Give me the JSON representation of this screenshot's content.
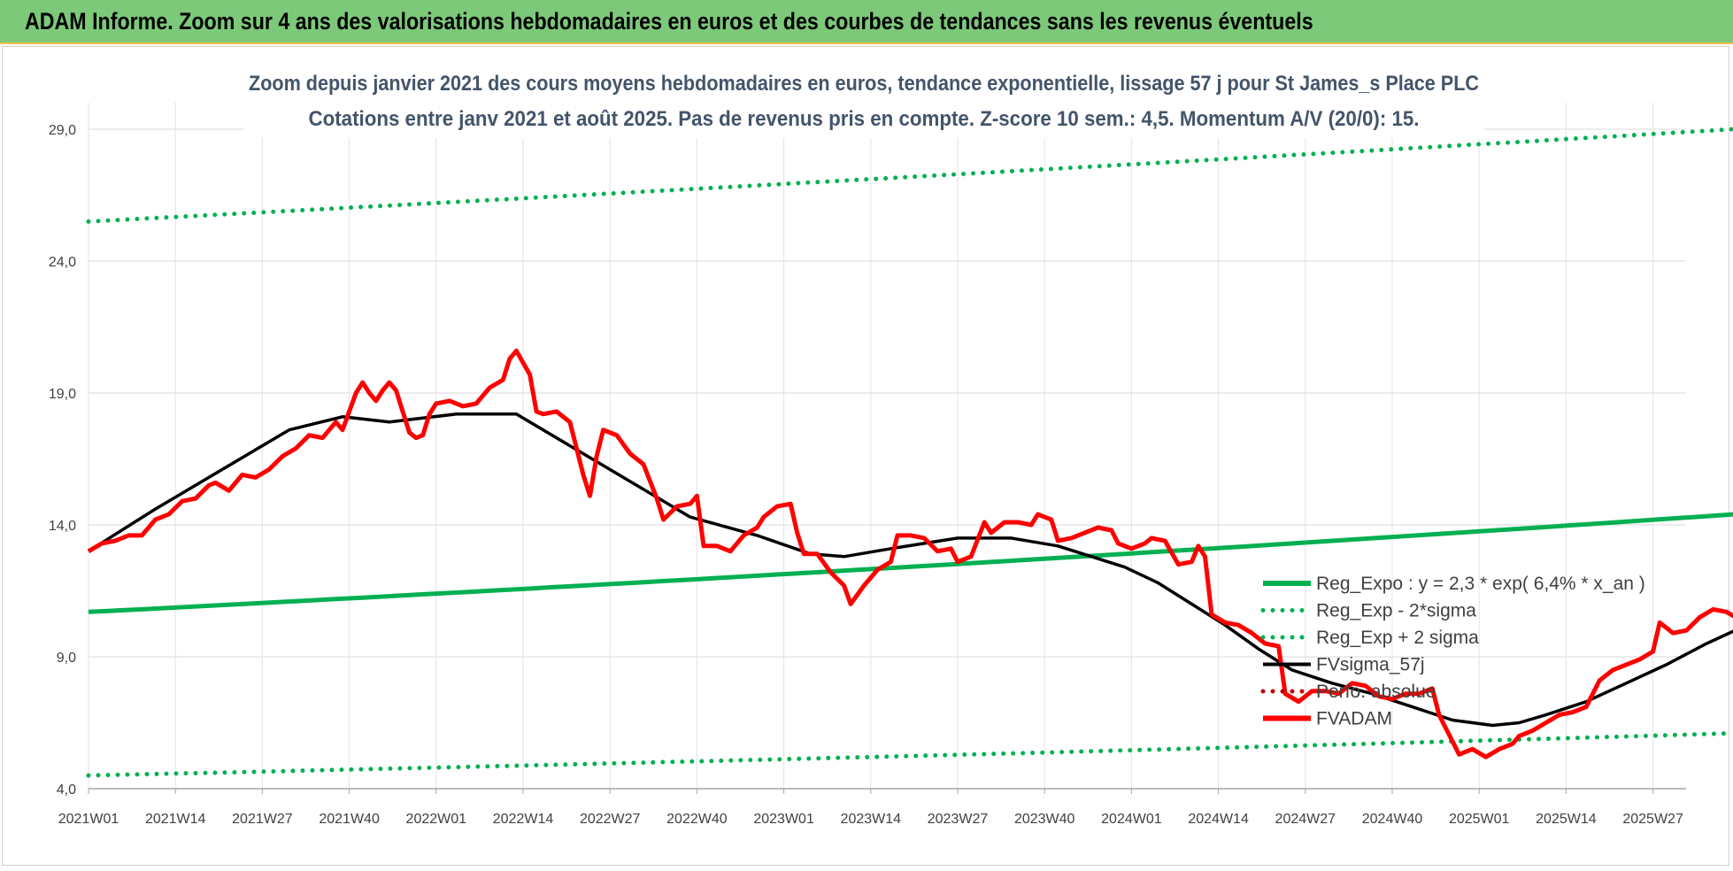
{
  "header": {
    "title": "ADAM Informe. Zoom sur 4 ans des valorisations hebdomadaires en euros et des courbes de tendances sans les revenus éventuels"
  },
  "colors": {
    "banner": "#7dc97a",
    "trend": "#00b050",
    "price": "#ff0000",
    "smooth": "#000000",
    "perf": "#c00000"
  },
  "chart_data": {
    "type": "line",
    "title": "Zoom depuis janvier 2021 des cours moyens hebdomadaires en euros, tendance exponentielle, lissage 57 j pour St James_s Place PLC",
    "subtitle": "Cotations entre janv 2021 et août 2025.  Pas de revenus pris en compte. Z-score 10 sem.: 4,5. Momentum A/V (20/0): 15.",
    "xlabel": "",
    "ylabel": "",
    "ylim": [
      4.0,
      29.0
    ],
    "yticks": [
      "4,0",
      "9,0",
      "14,0",
      "19,0",
      "24,0",
      "29,0"
    ],
    "x_categories": [
      "2021W01",
      "2021W14",
      "2021W27",
      "2021W40",
      "2022W01",
      "2022W14",
      "2022W27",
      "2022W40",
      "2023W01",
      "2023W14",
      "2023W27",
      "2023W40",
      "2024W01",
      "2024W14",
      "2024W27",
      "2024W40",
      "2025W01",
      "2025W14",
      "2025W27"
    ],
    "x_range_weeks": [
      0,
      246
    ],
    "grid": true,
    "legend_position": "right-middle",
    "legend": [
      {
        "name": "Reg_Expo : y = 2,3 * exp( 6,4% * x_an )",
        "style": "solid",
        "color": "#00b050"
      },
      {
        "name": "Reg_Exp - 2*sigma",
        "style": "dotted",
        "color": "#00b050"
      },
      {
        "name": "Reg_Exp + 2 sigma",
        "style": "dotted",
        "color": "#00b050"
      },
      {
        "name": "FVsigma_57j",
        "style": "solid",
        "color": "#000000"
      },
      {
        "name": "Perfo. absolue",
        "style": "dotted",
        "color": "#c00000"
      },
      {
        "name": "FVADAM",
        "style": "solid",
        "color": "#ff0000"
      }
    ],
    "series": [
      {
        "name": "Reg_Expo : y = 2,3 * exp( 6,4% * x_an )",
        "style": "solid",
        "color": "#00b050",
        "points": [
          [
            0,
            10.7
          ],
          [
            246,
            14.4
          ]
        ]
      },
      {
        "name": "Reg_Exp - 2*sigma",
        "style": "dotted",
        "color": "#00b050",
        "points": [
          [
            0,
            4.5
          ],
          [
            246,
            6.1
          ]
        ]
      },
      {
        "name": "Reg_Exp + 2 sigma",
        "style": "dotted",
        "color": "#00b050",
        "points": [
          [
            0,
            25.5
          ],
          [
            246,
            29.0
          ]
        ]
      },
      {
        "name": "FVsigma_57j",
        "style": "solid",
        "color": "#000000",
        "points": [
          [
            0,
            13.0
          ],
          [
            10,
            14.6
          ],
          [
            20,
            16.1
          ],
          [
            30,
            17.6
          ],
          [
            38,
            18.1
          ],
          [
            45,
            17.9
          ],
          [
            55,
            18.2
          ],
          [
            64,
            18.2
          ],
          [
            72,
            17.0
          ],
          [
            80,
            15.8
          ],
          [
            90,
            14.3
          ],
          [
            100,
            13.6
          ],
          [
            108,
            12.9
          ],
          [
            113,
            12.8
          ],
          [
            120,
            13.1
          ],
          [
            130,
            13.5
          ],
          [
            138,
            13.5
          ],
          [
            145,
            13.2
          ],
          [
            155,
            12.4
          ],
          [
            160,
            11.8
          ],
          [
            165,
            11.0
          ],
          [
            170,
            10.2
          ],
          [
            175,
            9.3
          ],
          [
            180,
            8.5
          ],
          [
            186,
            8.0
          ],
          [
            192,
            7.6
          ],
          [
            198,
            7.1
          ],
          [
            204,
            6.6
          ],
          [
            210,
            6.4
          ],
          [
            214,
            6.5
          ],
          [
            218,
            6.8
          ],
          [
            224,
            7.3
          ],
          [
            230,
            8.0
          ],
          [
            236,
            8.7
          ],
          [
            242,
            9.5
          ],
          [
            248,
            10.2
          ],
          [
            254,
            10.6
          ],
          [
            260,
            11.3
          ],
          [
            266,
            12.2
          ],
          [
            272,
            12.8
          ],
          [
            278,
            13.2
          ]
        ]
      },
      {
        "name": "FVADAM",
        "style": "solid",
        "color": "#ff0000",
        "points": [
          [
            0,
            13.0
          ],
          [
            2,
            13.3
          ],
          [
            4,
            13.4
          ],
          [
            6,
            13.6
          ],
          [
            8,
            13.6
          ],
          [
            10,
            14.2
          ],
          [
            12,
            14.4
          ],
          [
            14,
            14.9
          ],
          [
            16,
            15.0
          ],
          [
            18,
            15.5
          ],
          [
            19,
            15.6
          ],
          [
            21,
            15.3
          ],
          [
            23,
            15.9
          ],
          [
            25,
            15.8
          ],
          [
            27,
            16.1
          ],
          [
            29,
            16.6
          ],
          [
            31,
            16.9
          ],
          [
            33,
            17.4
          ],
          [
            35,
            17.3
          ],
          [
            37,
            17.9
          ],
          [
            38,
            17.6
          ],
          [
            39,
            18.3
          ],
          [
            40,
            19.0
          ],
          [
            41,
            19.4
          ],
          [
            42,
            19.0
          ],
          [
            43,
            18.7
          ],
          [
            44,
            19.1
          ],
          [
            45,
            19.4
          ],
          [
            46,
            19.1
          ],
          [
            47,
            18.3
          ],
          [
            48,
            17.5
          ],
          [
            49,
            17.3
          ],
          [
            50,
            17.4
          ],
          [
            51,
            18.2
          ],
          [
            52,
            18.6
          ],
          [
            54,
            18.7
          ],
          [
            56,
            18.5
          ],
          [
            58,
            18.6
          ],
          [
            60,
            19.2
          ],
          [
            62,
            19.5
          ],
          [
            63,
            20.3
          ],
          [
            64,
            20.6
          ],
          [
            66,
            19.7
          ],
          [
            67,
            18.3
          ],
          [
            68,
            18.2
          ],
          [
            70,
            18.3
          ],
          [
            72,
            17.9
          ],
          [
            74,
            15.9
          ],
          [
            75,
            15.1
          ],
          [
            76,
            16.6
          ],
          [
            77,
            17.6
          ],
          [
            79,
            17.4
          ],
          [
            81,
            16.7
          ],
          [
            83,
            16.3
          ],
          [
            85,
            15.0
          ],
          [
            86,
            14.2
          ],
          [
            88,
            14.7
          ],
          [
            90,
            14.8
          ],
          [
            91,
            15.1
          ],
          [
            92,
            13.2
          ],
          [
            94,
            13.2
          ],
          [
            96,
            13.0
          ],
          [
            98,
            13.6
          ],
          [
            100,
            13.9
          ],
          [
            101,
            14.3
          ],
          [
            103,
            14.7
          ],
          [
            105,
            14.8
          ],
          [
            106,
            13.7
          ],
          [
            107,
            12.9
          ],
          [
            109,
            12.9
          ],
          [
            111,
            12.2
          ],
          [
            113,
            11.7
          ],
          [
            114,
            11.0
          ],
          [
            116,
            11.7
          ],
          [
            118,
            12.3
          ],
          [
            120,
            12.6
          ],
          [
            121,
            13.6
          ],
          [
            123,
            13.6
          ],
          [
            125,
            13.5
          ],
          [
            127,
            13.0
          ],
          [
            129,
            13.1
          ],
          [
            130,
            12.6
          ],
          [
            132,
            12.8
          ],
          [
            134,
            14.1
          ],
          [
            135,
            13.7
          ],
          [
            137,
            14.1
          ],
          [
            139,
            14.1
          ],
          [
            141,
            14.0
          ],
          [
            142,
            14.4
          ],
          [
            144,
            14.2
          ],
          [
            145,
            13.4
          ],
          [
            147,
            13.5
          ],
          [
            149,
            13.7
          ],
          [
            151,
            13.9
          ],
          [
            153,
            13.8
          ],
          [
            154,
            13.3
          ],
          [
            156,
            13.1
          ],
          [
            158,
            13.3
          ],
          [
            159,
            13.5
          ],
          [
            161,
            13.4
          ],
          [
            163,
            12.5
          ],
          [
            165,
            12.6
          ],
          [
            166,
            13.2
          ],
          [
            167,
            12.8
          ],
          [
            168,
            10.6
          ],
          [
            170,
            10.3
          ],
          [
            172,
            10.2
          ],
          [
            174,
            9.9
          ],
          [
            176,
            9.5
          ],
          [
            178,
            9.4
          ],
          [
            179,
            7.6
          ],
          [
            181,
            7.3
          ],
          [
            183,
            7.7
          ],
          [
            185,
            7.7
          ],
          [
            187,
            7.6
          ],
          [
            189,
            8.0
          ],
          [
            191,
            7.9
          ],
          [
            193,
            7.5
          ],
          [
            195,
            7.4
          ],
          [
            197,
            7.6
          ],
          [
            199,
            7.6
          ],
          [
            201,
            7.8
          ],
          [
            202,
            6.8
          ],
          [
            204,
            5.8
          ],
          [
            205,
            5.3
          ],
          [
            207,
            5.5
          ],
          [
            209,
            5.2
          ],
          [
            211,
            5.5
          ],
          [
            213,
            5.7
          ],
          [
            214,
            6.0
          ],
          [
            216,
            6.2
          ],
          [
            218,
            6.5
          ],
          [
            220,
            6.8
          ],
          [
            222,
            6.9
          ],
          [
            224,
            7.1
          ],
          [
            226,
            8.1
          ],
          [
            228,
            8.5
          ],
          [
            230,
            8.7
          ],
          [
            232,
            8.9
          ],
          [
            234,
            9.2
          ],
          [
            235,
            10.3
          ],
          [
            237,
            9.9
          ],
          [
            239,
            10.0
          ],
          [
            241,
            10.5
          ],
          [
            243,
            10.8
          ],
          [
            245,
            10.7
          ],
          [
            247,
            10.4
          ],
          [
            249,
            10.3
          ],
          [
            251,
            12.0
          ],
          [
            253,
            13.0
          ],
          [
            255,
            13.5
          ],
          [
            257,
            12.8
          ],
          [
            258,
            11.9
          ],
          [
            260,
            12.1
          ],
          [
            262,
            9.6
          ],
          [
            264,
            10.3
          ],
          [
            266,
            11.4
          ],
          [
            268,
            12.3
          ],
          [
            270,
            13.0
          ],
          [
            272,
            13.1
          ],
          [
            274,
            12.8
          ],
          [
            276,
            13.6
          ],
          [
            278,
            14.0
          ],
          [
            280,
            13.9
          ],
          [
            282,
            13.7
          ],
          [
            284,
            13.9
          ]
        ]
      }
    ]
  }
}
